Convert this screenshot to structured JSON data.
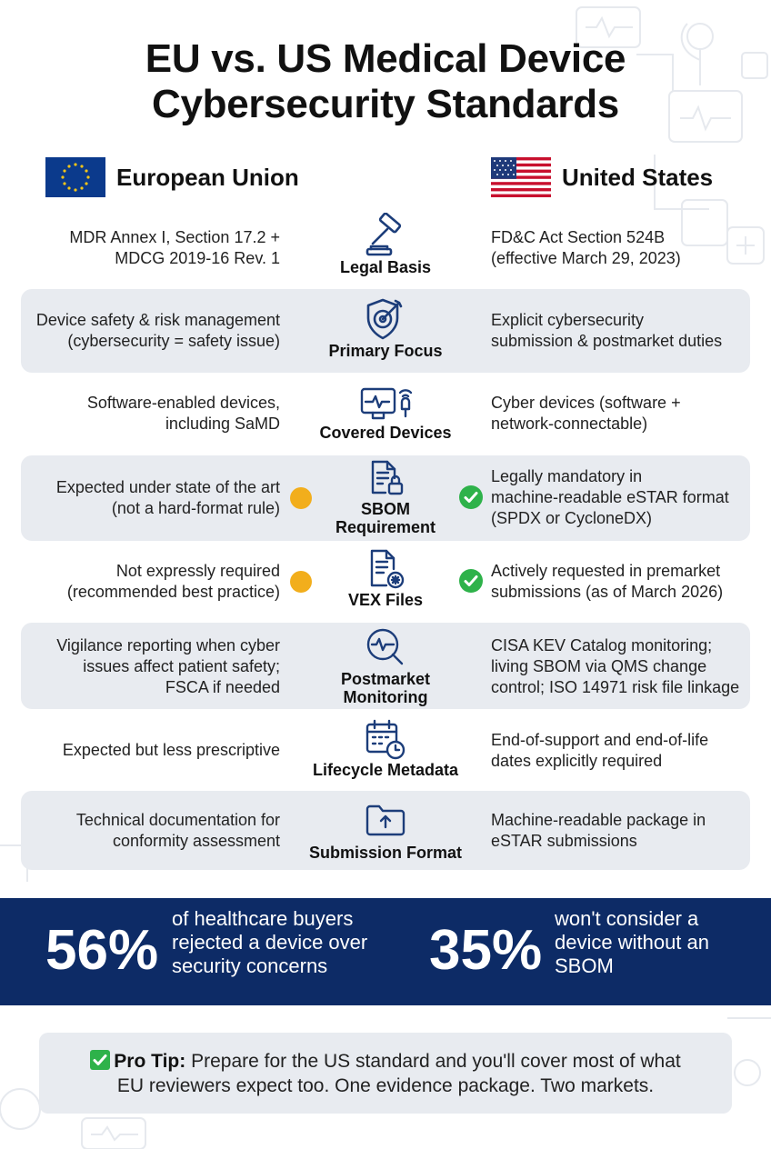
{
  "title_line1": "EU vs. US Medical Device",
  "title_line2": "Cybersecurity Standards",
  "eu": {
    "name": "European Union",
    "flag_icon": "eu-flag-icon"
  },
  "us": {
    "name": "United States",
    "flag_icon": "us-flag-icon"
  },
  "rows": [
    {
      "label": "Legal Basis",
      "icon": "gavel-icon",
      "eu": [
        "MDR Annex I, Section 17.2 +",
        "MDCG 2019-16 Rev. 1"
      ],
      "us": [
        "FD&C Act Section 524B",
        "(effective March 29, 2023)"
      ]
    },
    {
      "label": "Primary Focus",
      "icon": "shield-target-icon",
      "eu": [
        "Device safety & risk management",
        "(cybersecurity = safety issue)"
      ],
      "us": [
        "Explicit cybersecurity",
        "submission & postmarket duties"
      ]
    },
    {
      "label": "Covered Devices",
      "icon": "connected-device-icon",
      "eu": [
        "Software-enabled devices,",
        "including SaMD"
      ],
      "us": [
        "Cyber devices (software +",
        "network-connectable)"
      ]
    },
    {
      "label_lines": [
        "SBOM",
        "Requirement"
      ],
      "icon": "locked-document-icon",
      "eu": [
        "Expected under state of the art",
        "(not a hard-format rule)"
      ],
      "eu_status": "partial",
      "us": [
        "Legally mandatory in",
        "machine-readable eSTAR format",
        "(SPDX or CycloneDX)"
      ],
      "us_status": "required"
    },
    {
      "label": "VEX Files",
      "icon": "document-virus-icon",
      "eu": [
        "Not expressly required",
        "(recommended best practice)"
      ],
      "eu_status": "partial",
      "us": [
        "Actively requested in premarket",
        "submissions (as of March 2026)"
      ],
      "us_status": "required"
    },
    {
      "label_lines": [
        "Postmarket",
        "Monitoring"
      ],
      "icon": "monitoring-magnifier-icon",
      "eu": [
        "Vigilance reporting when cyber",
        "issues affect patient safety;",
        "FSCA if needed"
      ],
      "us": [
        "CISA KEV Catalog monitoring;",
        "living SBOM via QMS change",
        "control; ISO 14971 risk file linkage"
      ]
    },
    {
      "label": "Lifecycle Metadata",
      "icon": "calendar-clock-icon",
      "eu": [
        "Expected but less prescriptive"
      ],
      "us": [
        "End-of-support and end-of-life",
        "dates explicitly required"
      ]
    },
    {
      "label": "Submission Format",
      "icon": "folder-upload-icon",
      "eu": [
        "Technical documentation for",
        "conformity assessment"
      ],
      "us": [
        "Machine-readable package in",
        "eSTAR submissions"
      ]
    }
  ],
  "stats": [
    {
      "value": "56%",
      "text": [
        "of healthcare buyers",
        "rejected a device over",
        "security concerns"
      ]
    },
    {
      "value": "35%",
      "text": [
        "won't consider a",
        "device without an",
        "SBOM"
      ]
    }
  ],
  "tip": {
    "icon": "check-box-icon",
    "label": "Pro Tip:",
    "text_line1": " Prepare for the US standard and you'll cover most of what",
    "text_line2": "EU reviewers expect too. One evidence package. Two markets."
  },
  "colors": {
    "navy": "#0d2b66",
    "amber": "#f2ae1c",
    "green": "#2eb24a",
    "row_shade": "#e8ebf0"
  }
}
